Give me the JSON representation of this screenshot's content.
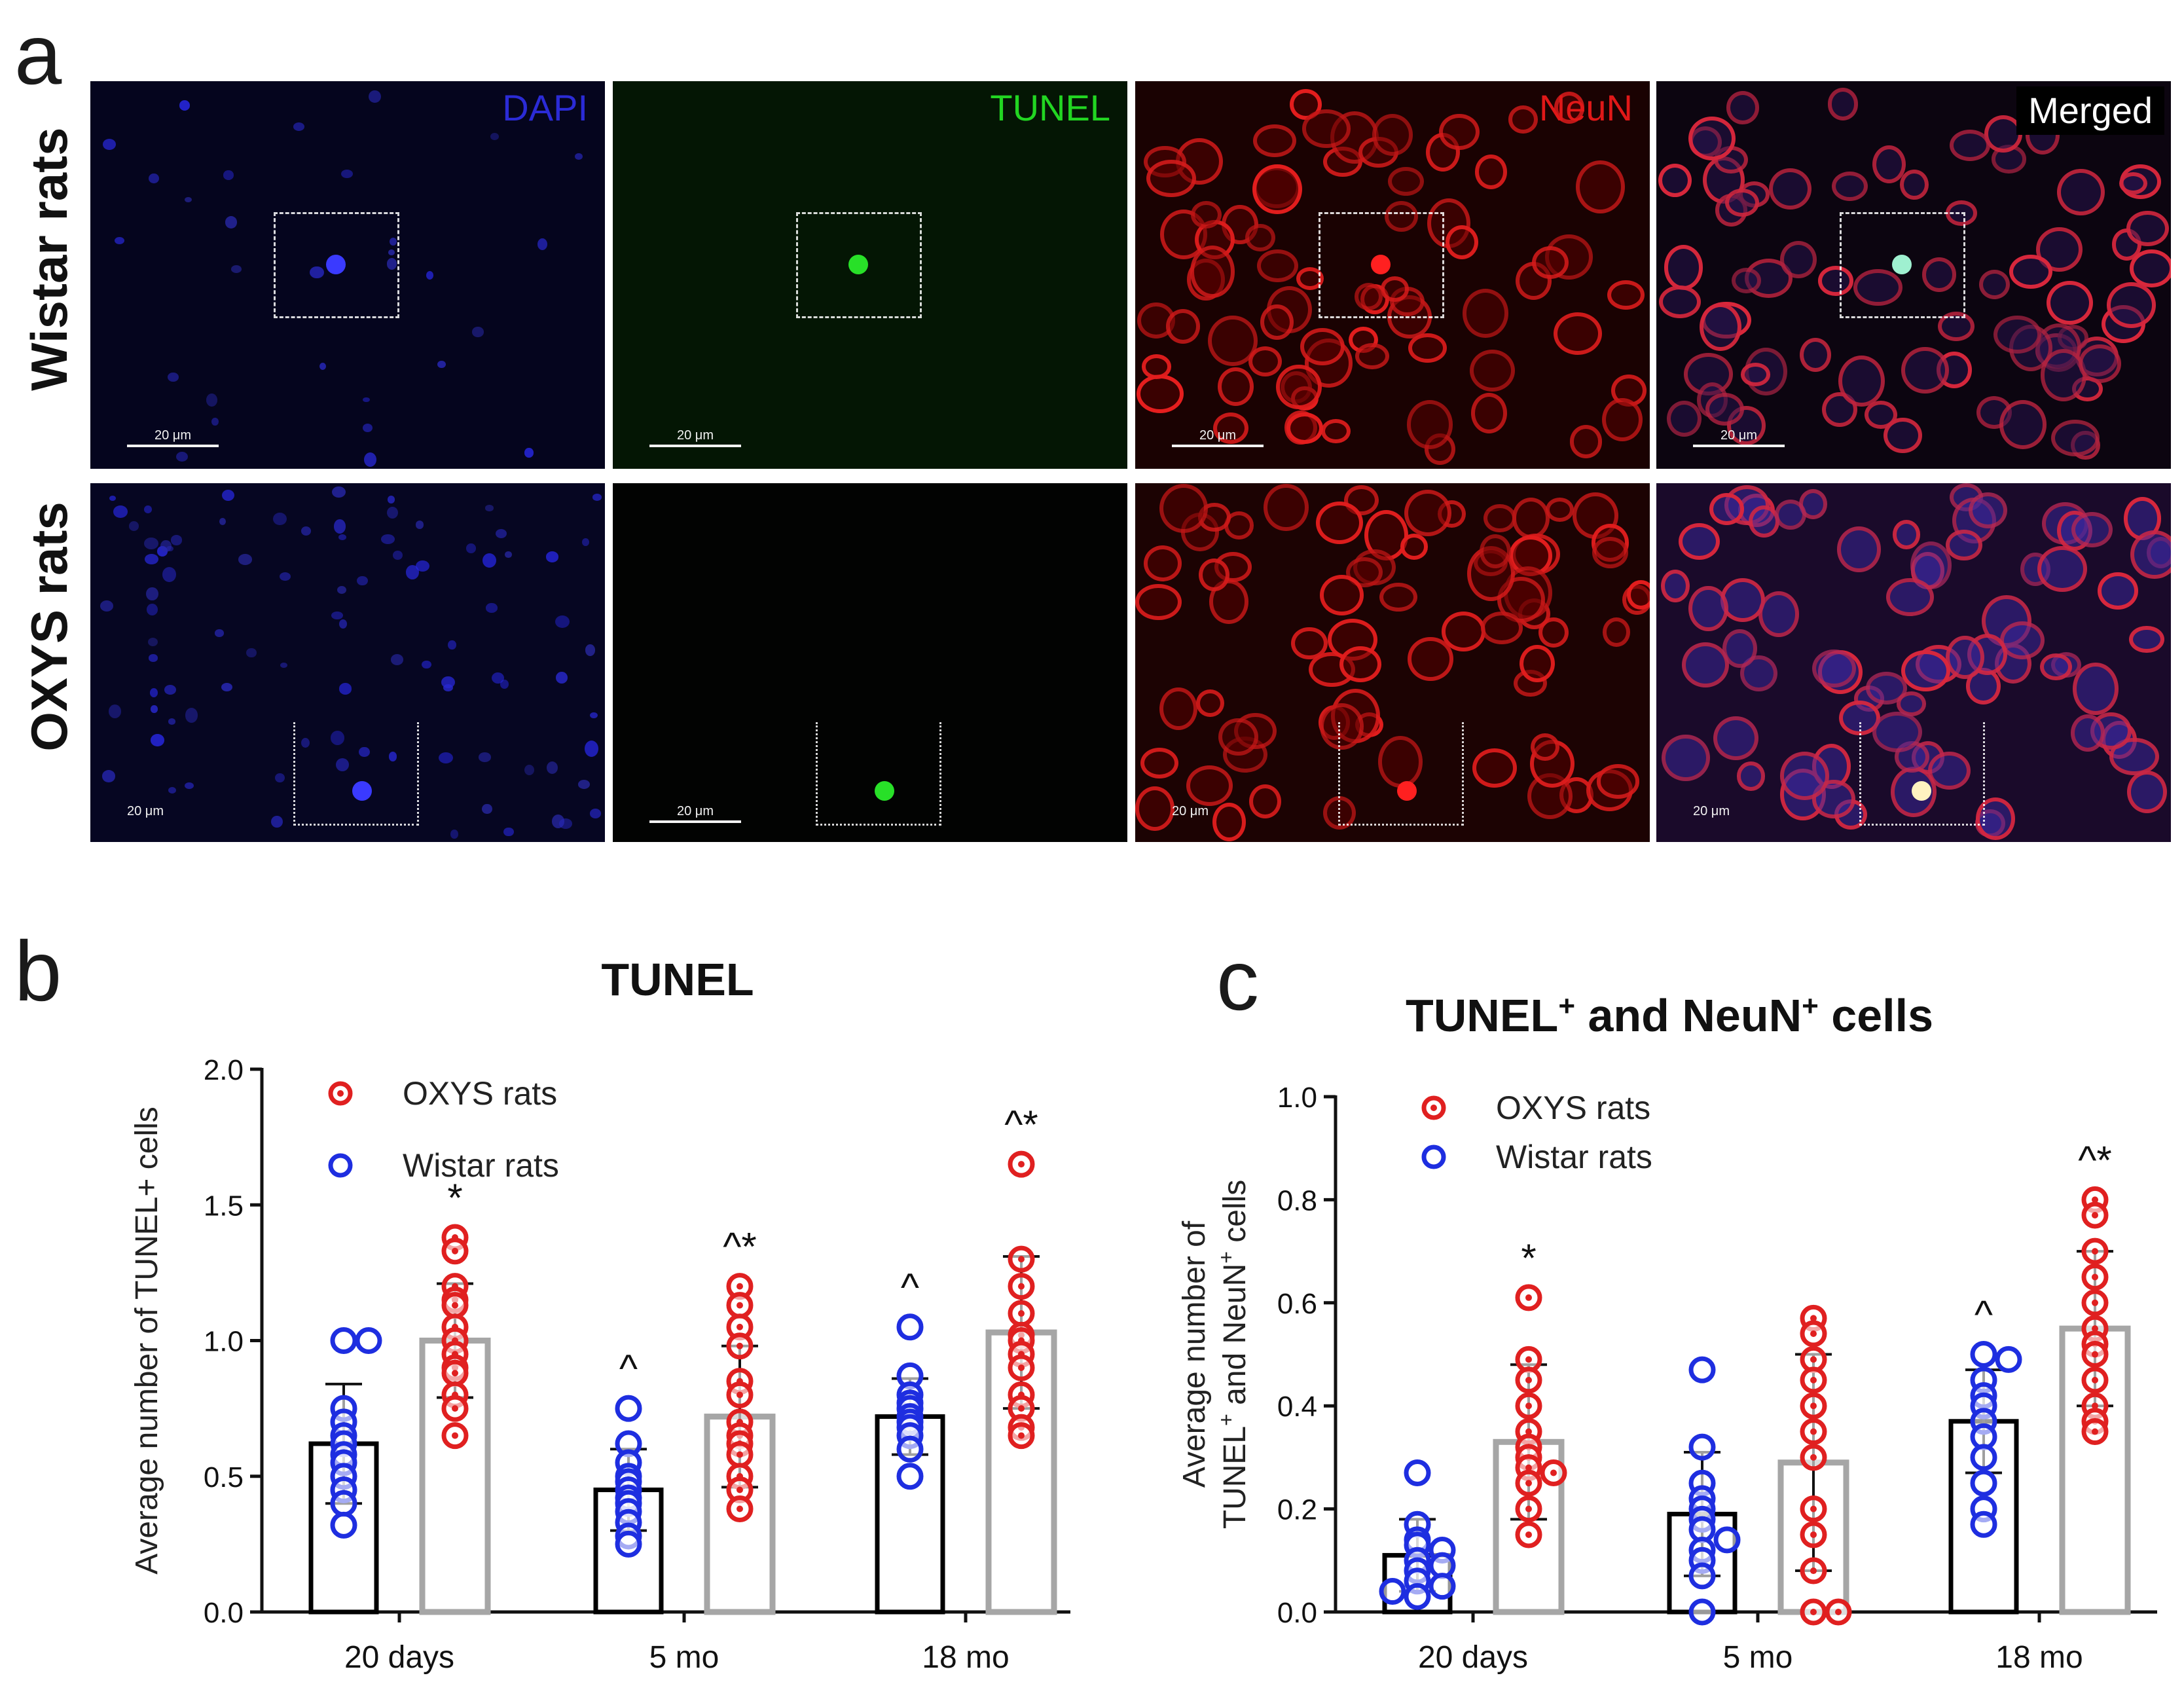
{
  "panels": {
    "a": "a",
    "b": "b",
    "c": "c"
  },
  "micrographs": {
    "rows": [
      "Wistar rats",
      "OXYS rats"
    ],
    "channels": [
      {
        "name": "DAPI",
        "color": "#2b2bd6"
      },
      {
        "name": "TUNEL",
        "color": "#22d622"
      },
      {
        "name": "NeuN",
        "color": "#e01818"
      },
      {
        "name": "Merged",
        "color": "#ffffff"
      }
    ],
    "scale_bar_label": "20 μm"
  },
  "colors": {
    "oxys": "#e02020",
    "wistar": "#1e2ee0",
    "oxys_bar": "#a6a6a6",
    "wistar_bar": "#000000"
  },
  "chart_data": [
    {
      "id": "b",
      "type": "bar",
      "title": "TUNEL",
      "ylabel": "Average number of TUNEL+ cells",
      "xlabel": "",
      "categories": [
        "20 days",
        "5 mo",
        "18 mo"
      ],
      "ylim": [
        0,
        2.0
      ],
      "yticks": [
        "0.0",
        "0.5",
        "1.0",
        "1.5",
        "2.0"
      ],
      "legend": [
        "OXYS rats",
        "Wistar rats"
      ],
      "legend_position": "top-left",
      "series": [
        {
          "name": "Wistar rats",
          "means": [
            0.62,
            0.45,
            0.72
          ],
          "sd": [
            0.22,
            0.15,
            0.14
          ],
          "points": [
            [
              1.0,
              1.0,
              0.75,
              0.7,
              0.65,
              0.62,
              0.58,
              0.55,
              0.5,
              0.45,
              0.4,
              0.32
            ],
            [
              0.75,
              0.62,
              0.55,
              0.5,
              0.48,
              0.45,
              0.42,
              0.4,
              0.37,
              0.33,
              0.28,
              0.25
            ],
            [
              1.05,
              0.87,
              0.8,
              0.77,
              0.75,
              0.72,
              0.7,
              0.68,
              0.65,
              0.6,
              0.5
            ]
          ],
          "annotations": [
            "",
            "^",
            "^"
          ]
        },
        {
          "name": "OXYS rats",
          "means": [
            1.0,
            0.72,
            1.03
          ],
          "sd": [
            0.21,
            0.26,
            0.28
          ],
          "points": [
            [
              1.38,
              1.33,
              1.2,
              1.15,
              1.13,
              1.05,
              1.0,
              0.95,
              0.9,
              0.88,
              0.8,
              0.75,
              0.65
            ],
            [
              1.2,
              1.13,
              1.05,
              0.98,
              0.85,
              0.8,
              0.7,
              0.65,
              0.62,
              0.58,
              0.5,
              0.45,
              0.38
            ],
            [
              1.65,
              1.3,
              1.2,
              1.1,
              1.02,
              1.0,
              0.95,
              0.9,
              0.8,
              0.75,
              0.68,
              0.65
            ]
          ],
          "annotations": [
            "*",
            "^*",
            "^*"
          ]
        }
      ]
    },
    {
      "id": "c",
      "type": "bar",
      "title": "TUNEL+ and NeuN+ cells",
      "ylabel": "Average number of TUNEL+ and NeuN+ cells",
      "xlabel": "",
      "categories": [
        "20 days",
        "5 mo",
        "18 mo"
      ],
      "ylim": [
        0,
        1.0
      ],
      "yticks": [
        "0.0",
        "0.2",
        "0.4",
        "0.6",
        "0.8",
        "1.0"
      ],
      "legend": [
        "OXYS rats",
        "Wistar rats"
      ],
      "legend_position": "top-left",
      "series": [
        {
          "name": "Wistar rats",
          "means": [
            0.11,
            0.19,
            0.37
          ],
          "sd": [
            0.07,
            0.12,
            0.1
          ],
          "points": [
            [
              0.27,
              0.17,
              0.14,
              0.13,
              0.12,
              0.1,
              0.09,
              0.08,
              0.06,
              0.05,
              0.04,
              0.03
            ],
            [
              0.47,
              0.32,
              0.25,
              0.22,
              0.2,
              0.18,
              0.16,
              0.14,
              0.12,
              0.1,
              0.07,
              0.0
            ],
            [
              0.5,
              0.49,
              0.45,
              0.42,
              0.4,
              0.37,
              0.34,
              0.3,
              0.25,
              0.2,
              0.17
            ]
          ],
          "annotations": [
            "",
            "",
            "^"
          ]
        },
        {
          "name": "OXYS rats",
          "means": [
            0.33,
            0.29,
            0.55
          ],
          "sd": [
            0.15,
            0.21,
            0.15
          ],
          "points": [
            [
              0.61,
              0.49,
              0.45,
              0.4,
              0.35,
              0.32,
              0.3,
              0.28,
              0.27,
              0.25,
              0.2,
              0.15
            ],
            [
              0.57,
              0.54,
              0.49,
              0.45,
              0.4,
              0.35,
              0.3,
              0.2,
              0.15,
              0.08,
              0.0,
              0.0
            ],
            [
              0.8,
              0.77,
              0.7,
              0.65,
              0.6,
              0.55,
              0.52,
              0.5,
              0.45,
              0.4,
              0.37,
              0.35
            ]
          ],
          "annotations": [
            "*",
            "",
            "^*"
          ]
        }
      ]
    }
  ]
}
